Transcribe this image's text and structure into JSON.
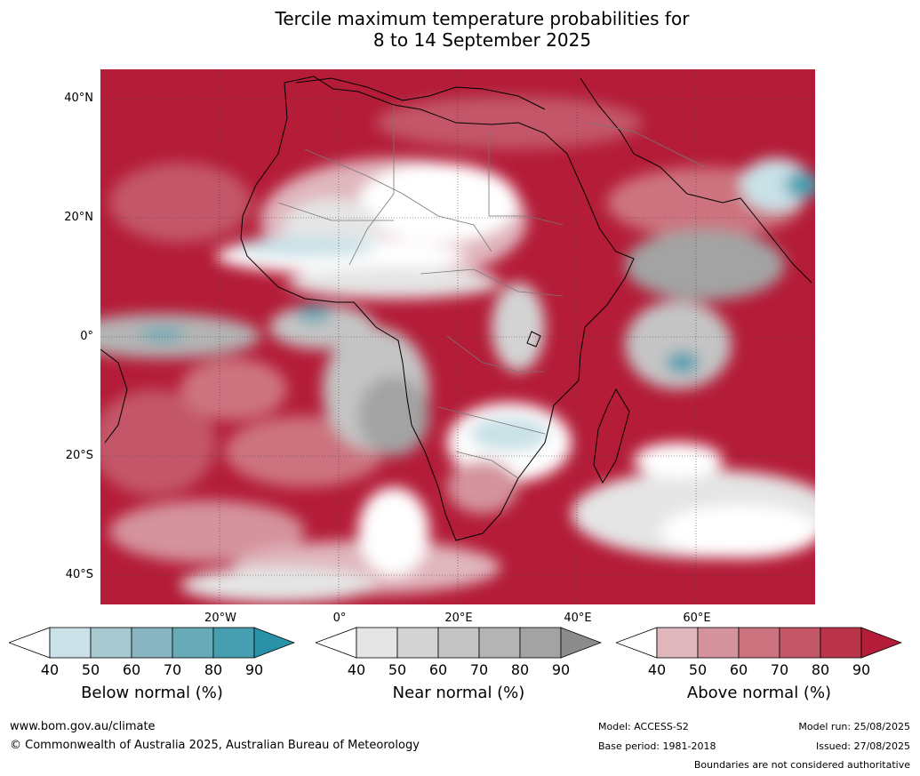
{
  "title_line1": "Tercile maximum temperature probabilities for",
  "title_line2": "8 to 14 September 2025",
  "lat_labels": [
    "40°N",
    "20°N",
    "0°",
    "20°S",
    "40°S"
  ],
  "lon_labels": [
    "20°W",
    "0°",
    "20°E",
    "40°E",
    "60°E"
  ],
  "legend": {
    "below": {
      "title": "Below normal (%)",
      "ticks": [
        "40",
        "50",
        "60",
        "70",
        "80",
        "90"
      ],
      "colors": [
        "#ffffff",
        "#c9e1e7",
        "#a6c8cf",
        "#88b5bf",
        "#68aab6",
        "#469fb0",
        "#2a92a6"
      ]
    },
    "near": {
      "title": "Near normal (%)",
      "ticks": [
        "40",
        "50",
        "60",
        "70",
        "80",
        "90"
      ],
      "colors": [
        "#ffffff",
        "#e5e5e5",
        "#d3d3d3",
        "#c4c4c4",
        "#b4b4b4",
        "#a3a3a3",
        "#8c8c8c"
      ]
    },
    "above": {
      "title": "Above normal (%)",
      "ticks": [
        "40",
        "50",
        "60",
        "70",
        "80",
        "90"
      ],
      "colors": [
        "#ffffff",
        "#e0b6bd",
        "#d4939d",
        "#cd737f",
        "#c35667",
        "#ba3449",
        "#b41c38"
      ]
    }
  },
  "footer": {
    "url": "www.bom.gov.au/climate",
    "copyright": "© Commonwealth of Australia 2025, Australian Bureau of Meteorology",
    "model": "Model: ACCESS-S2",
    "base_period": "Base period: 1981-2018",
    "model_run": "Model run: 25/08/2025",
    "issued": "Issued: 27/08/2025",
    "disclaimer": "Boundaries are not considered authoritative"
  }
}
